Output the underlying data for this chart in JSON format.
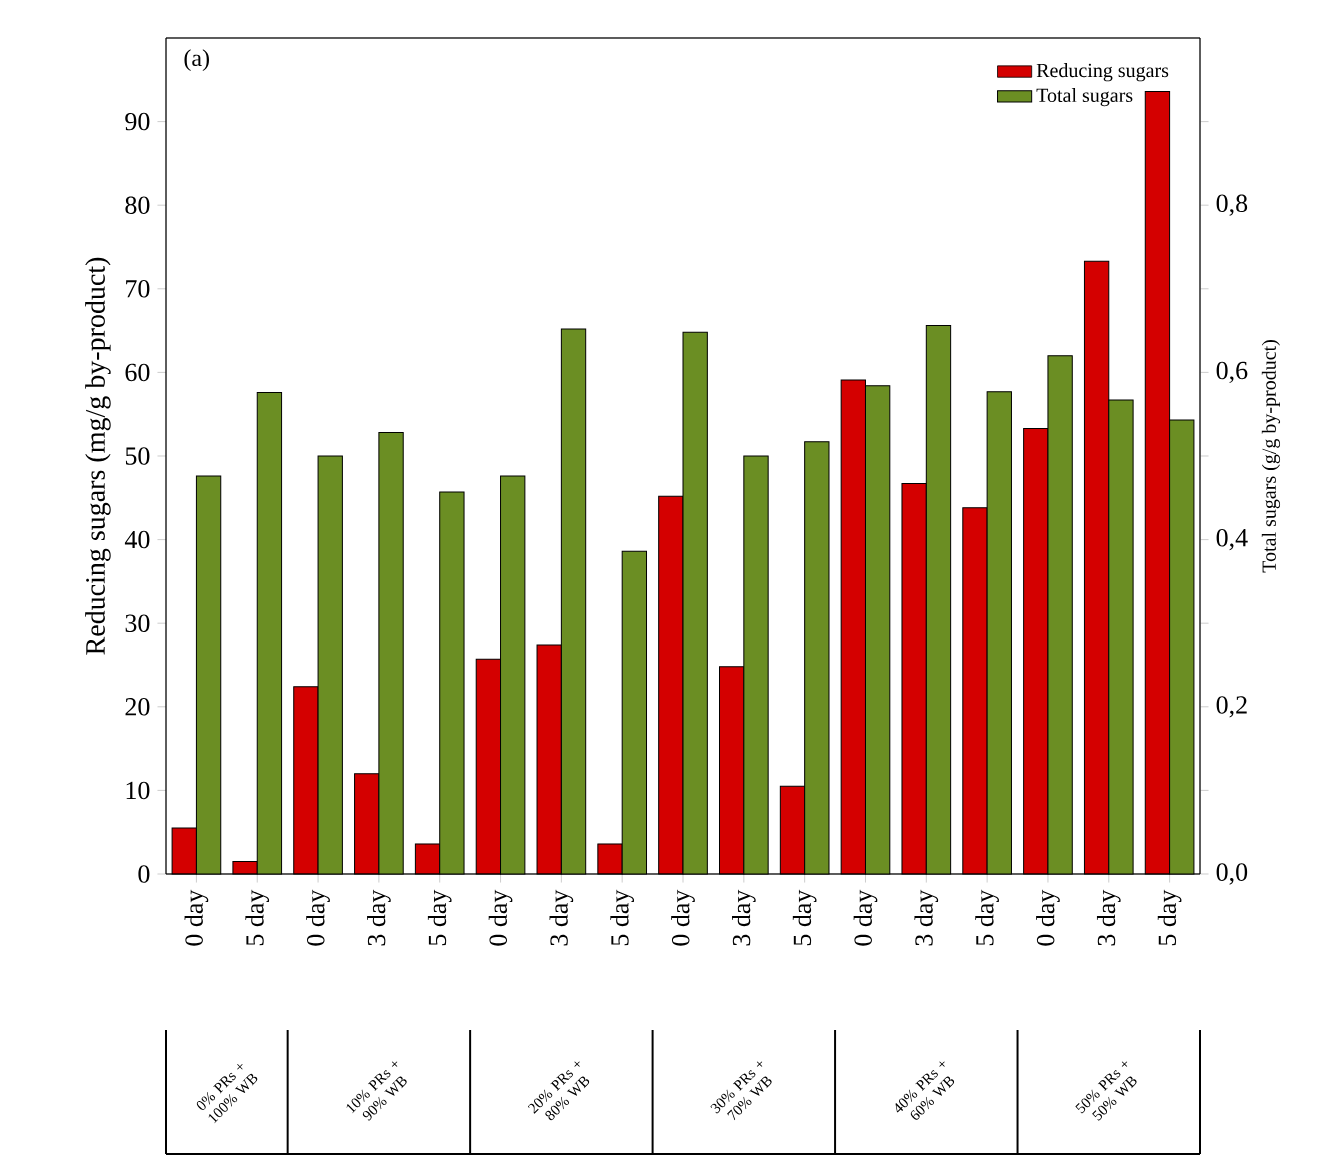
{
  "chart_data": {
    "type": "bar",
    "categories": [
      "0 day",
      "5 day",
      "0 day",
      "3 day",
      "5 day",
      "0 day",
      "3 day",
      "5 day",
      "0 day",
      "3 day",
      "5 day",
      "0 day",
      "3 day",
      "5 day",
      "0 day",
      "3 day",
      "5 day"
    ],
    "series": [
      {
        "name": "Reducing sugars",
        "color": "#d40000",
        "values": [
          5.5,
          1.5,
          22.4,
          12.0,
          3.6,
          25.7,
          27.4,
          3.6,
          45.2,
          24.8,
          10.5,
          59.1,
          46.7,
          43.8,
          53.3,
          73.3,
          93.6
        ]
      },
      {
        "name": "Total sugars",
        "color": "#6b8e23",
        "axis": "y2",
        "values": [
          0.476,
          0.576,
          0.5,
          0.528,
          0.457,
          0.476,
          0.652,
          0.386,
          0.648,
          0.5,
          0.517,
          0.584,
          0.656,
          0.577,
          0.62,
          0.567,
          0.543
        ]
      }
    ],
    "ylim": [
      0,
      100
    ],
    "yticks": [
      0,
      10,
      20,
      30,
      40,
      50,
      60,
      70,
      80,
      90
    ],
    "y2lim": [
      0,
      1.0
    ],
    "y2ticks": [
      {
        "value": 0,
        "label": "0,0"
      },
      {
        "value": 0.1,
        "label": null
      },
      {
        "value": 0.2,
        "label": "0,2"
      },
      {
        "value": 0.3,
        "label": null
      },
      {
        "value": 0.4,
        "label": "0,4"
      },
      {
        "value": 0.5,
        "label": null
      },
      {
        "value": 0.6,
        "label": "0,6"
      },
      {
        "value": 0.7,
        "label": null
      },
      {
        "value": 0.8,
        "label": "0,8"
      },
      {
        "value": 0.9,
        "label": null
      }
    ],
    "ylabel": "Reducing sugars (mg/g by-product)",
    "y2label": "Total sugars (g/g by-product)",
    "legend": "top right",
    "annotations": [
      "(a)",
      "0% PRs + 100% WB",
      "10% PRs + 90% WB",
      "20% PRs + 80% WB",
      "30% PRs + 70% WB",
      "40% PRs + 60% WB",
      "50% PRs + 50% WB"
    ]
  }
}
